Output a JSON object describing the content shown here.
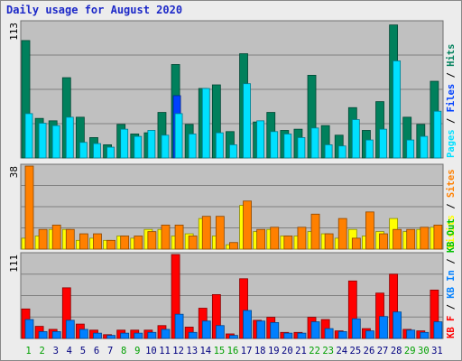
{
  "title": "Daily usage for August 2020",
  "colors": {
    "hits": "#00805c",
    "files": "#0040ff",
    "pages": "#00e0ff",
    "visits": "#ffff00",
    "sites": "#ff8000",
    "kb_f": "#ff0000",
    "kb_in": "#0080ff",
    "kb_out": "#00c000",
    "weekend": "#00a000",
    "weekday": "#000080",
    "panel": "#c0c0c0"
  },
  "chart_data": [
    {
      "type": "bar",
      "panel": "hits-files-pages",
      "ymax_label": "113",
      "ylim": [
        0,
        113
      ],
      "legend": [
        {
          "key": "pages",
          "text": "Pages"
        },
        {
          "key": "sep",
          "text": " / "
        },
        {
          "key": "files",
          "text": "Files"
        },
        {
          "key": "sep",
          "text": " / "
        },
        {
          "key": "hits",
          "text": "Hits"
        }
      ],
      "series": [
        {
          "key": "hits",
          "values": [
            98,
            33,
            31,
            67,
            34,
            17,
            11,
            28,
            20,
            21,
            38,
            78,
            28,
            58,
            61,
            22,
            87,
            30,
            38,
            23,
            24,
            69,
            27,
            19,
            42,
            23,
            47,
            111,
            34,
            28,
            64
          ]
        },
        {
          "key": "files",
          "values": [
            0,
            0,
            0,
            0,
            0,
            0,
            0,
            0,
            0,
            0,
            0,
            52,
            0,
            0,
            0,
            0,
            0,
            0,
            0,
            0,
            0,
            0,
            0,
            0,
            0,
            0,
            0,
            0,
            0,
            0,
            0
          ]
        },
        {
          "key": "pages",
          "values": [
            37,
            29,
            27,
            34,
            13,
            12,
            9,
            24,
            18,
            23,
            19,
            37,
            20,
            58,
            21,
            11,
            62,
            31,
            22,
            20,
            17,
            25,
            11,
            10,
            32,
            15,
            24,
            81,
            15,
            18,
            39
          ]
        }
      ]
    },
    {
      "type": "bar",
      "panel": "visits-sites",
      "ymax_label": "38",
      "ylim": [
        0,
        38
      ],
      "legend": [
        {
          "key": "visits",
          "text": "Visits"
        },
        {
          "key": "sep",
          "text": " / "
        },
        {
          "key": "sites",
          "text": "Sites"
        }
      ],
      "series": [
        {
          "key": "visits",
          "values": [
            5,
            6,
            9,
            9,
            4,
            5,
            4,
            6,
            5,
            9,
            9,
            6,
            7,
            14,
            6,
            2,
            20,
            8,
            9,
            6,
            6,
            8,
            7,
            5,
            9,
            6,
            8,
            14,
            8,
            9,
            10
          ]
        },
        {
          "key": "sites",
          "values": [
            38,
            9,
            11,
            9,
            7,
            7,
            4,
            6,
            6,
            8,
            11,
            11,
            6,
            15,
            15,
            3,
            22,
            9,
            10,
            6,
            10,
            16,
            7,
            14,
            5,
            17,
            7,
            9,
            9,
            10,
            11
          ]
        }
      ]
    },
    {
      "type": "bar",
      "panel": "kbytes",
      "ymax_label": "111",
      "ylim": [
        0,
        111
      ],
      "legend": [
        {
          "key": "kb_f",
          "text": "KB F"
        },
        {
          "key": "sep",
          "text": " / "
        },
        {
          "key": "kb_in",
          "text": "KB In"
        },
        {
          "key": "sep",
          "text": " / "
        },
        {
          "key": "kb_out",
          "text": "KB Out"
        }
      ],
      "series": [
        {
          "key": "kb_f",
          "values": [
            39,
            16,
            12,
            67,
            19,
            11,
            5,
            11,
            11,
            11,
            17,
            111,
            15,
            40,
            58,
            6,
            79,
            24,
            28,
            8,
            8,
            28,
            25,
            10,
            76,
            13,
            60,
            85,
            12,
            10,
            64
          ]
        },
        {
          "key": "kb_in",
          "values": [
            25,
            9,
            9,
            24,
            12,
            7,
            4,
            7,
            7,
            8,
            12,
            32,
            8,
            23,
            17,
            4,
            37,
            23,
            21,
            7,
            7,
            22,
            13,
            9,
            26,
            10,
            29,
            35,
            11,
            8,
            22
          ]
        },
        {
          "key": "kb_out",
          "values": [
            0,
            0,
            0,
            0,
            0,
            0,
            0,
            0,
            0,
            0,
            0,
            0,
            0,
            0,
            0,
            0,
            0,
            0,
            0,
            0,
            0,
            0,
            0,
            0,
            0,
            0,
            0,
            0,
            0,
            0,
            0
          ]
        }
      ]
    }
  ],
  "x_labels": [
    "1",
    "2",
    "3",
    "4",
    "5",
    "6",
    "7",
    "8",
    "9",
    "10",
    "11",
    "12",
    "13",
    "14",
    "15",
    "16",
    "17",
    "18",
    "19",
    "20",
    "21",
    "22",
    "23",
    "24",
    "25",
    "26",
    "27",
    "28",
    "29",
    "30",
    "31"
  ],
  "weekend_days": [
    "1",
    "2",
    "8",
    "9",
    "15",
    "16",
    "22",
    "23",
    "29",
    "30"
  ]
}
